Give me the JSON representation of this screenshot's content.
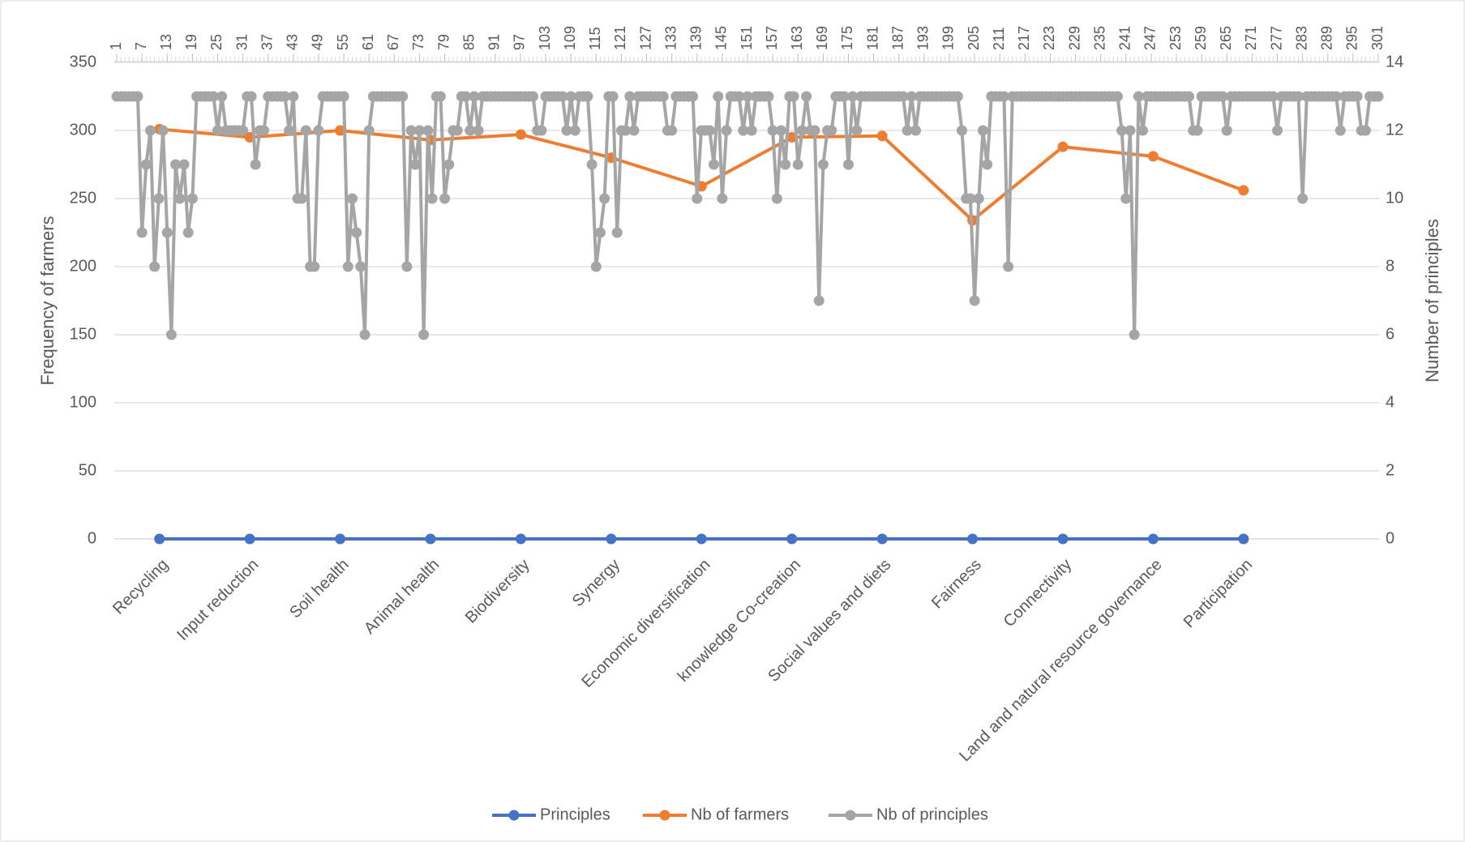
{
  "chart_data": {
    "type": "line",
    "categories": [
      "Recycling",
      "Input reduction",
      "Soil health",
      "Animal health",
      "Biodiversity",
      "Synergy",
      "Economic diversification",
      "knowledge Co-creation",
      "Social values and diets",
      "Fairness",
      "Connectivity",
      "Land and natural resource governance",
      "Participation"
    ],
    "ylabel": "Frequency of farmers",
    "y2label": "Number of principles",
    "ylim": [
      0,
      350
    ],
    "yticks": [
      0,
      50,
      100,
      150,
      200,
      250,
      300,
      350
    ],
    "y2lim": [
      0,
      14
    ],
    "y2ticks": [
      0,
      2,
      4,
      6,
      8,
      10,
      12,
      14
    ],
    "x2lim": [
      1,
      301
    ],
    "x2ticks": [
      1,
      7,
      13,
      19,
      25,
      31,
      37,
      43,
      49,
      55,
      61,
      67,
      73,
      79,
      85,
      91,
      97,
      103,
      109,
      115,
      121,
      127,
      133,
      139,
      145,
      151,
      157,
      163,
      169,
      175,
      181,
      187,
      193,
      199,
      205,
      211,
      217,
      223,
      229,
      235,
      241,
      247,
      253,
      259,
      265,
      271,
      277,
      283,
      289,
      295,
      301
    ],
    "grid": true,
    "legend": "bottom",
    "series": [
      {
        "name": "Principles",
        "color": "#4472c4",
        "values": [
          0,
          0,
          0,
          0,
          0,
          0,
          0,
          0,
          0,
          0,
          0,
          0,
          0
        ]
      },
      {
        "name": "Nb of farmers",
        "color": "#ed7d31",
        "values": [
          301,
          295,
          300,
          293,
          297,
          280,
          259,
          295,
          296,
          234,
          288,
          281,
          256
        ]
      },
      {
        "name": "Nb of principles",
        "color": "#a5a5a5",
        "axis": "y2",
        "x": [
          1,
          2,
          3,
          4,
          5,
          6,
          7,
          8,
          9,
          10,
          11,
          12,
          13,
          14,
          15,
          16,
          17,
          18,
          19,
          20,
          21,
          22,
          23,
          24,
          25,
          26,
          27,
          28,
          29,
          30,
          31,
          32,
          33,
          34,
          35,
          36,
          37,
          38,
          39,
          40,
          41,
          42,
          43,
          44,
          45,
          46,
          47,
          48,
          49,
          50,
          51,
          52,
          53,
          54,
          55,
          56,
          57,
          58,
          59,
          60,
          61,
          62,
          63,
          64,
          65,
          66,
          67,
          68,
          69,
          70,
          71,
          72,
          73,
          74,
          75,
          76,
          77,
          78,
          79,
          80,
          81,
          82,
          83,
          84,
          85,
          86,
          87,
          88,
          89,
          90,
          91,
          92,
          93,
          94,
          95,
          96,
          97,
          98,
          99,
          100,
          101,
          102,
          103,
          104,
          105,
          106,
          107,
          108,
          109,
          110,
          111,
          112,
          113,
          114,
          115,
          116,
          117,
          118,
          119,
          120,
          121,
          122,
          123,
          124,
          125,
          126,
          127,
          128,
          129,
          130,
          131,
          132,
          133,
          134,
          135,
          136,
          137,
          138,
          139,
          140,
          141,
          142,
          143,
          144,
          145,
          146,
          147,
          148,
          149,
          150,
          151,
          152,
          153,
          154,
          155,
          156,
          157,
          158,
          159,
          160,
          161,
          162,
          163,
          164,
          165,
          166,
          167,
          168,
          169,
          170,
          171,
          172,
          173,
          174,
          175,
          176,
          177,
          178,
          179,
          180,
          181,
          182,
          183,
          184,
          185,
          186,
          187,
          188,
          189,
          190,
          191,
          192,
          193,
          194,
          195,
          196,
          197,
          198,
          199,
          200,
          201,
          202,
          203,
          204,
          205,
          206,
          207,
          208,
          209,
          210,
          211,
          212,
          213,
          214,
          215,
          216,
          217,
          218,
          219,
          220,
          221,
          222,
          223,
          224,
          225,
          226,
          227,
          228,
          229,
          230,
          231,
          232,
          233,
          234,
          235,
          236,
          237,
          238,
          239,
          240,
          241,
          242,
          243,
          244,
          245,
          246,
          247,
          248,
          249,
          250,
          251,
          252,
          253,
          254,
          255,
          256,
          257,
          258,
          259,
          260,
          261,
          262,
          263,
          264,
          265,
          266,
          267,
          268,
          269,
          270,
          271,
          272,
          273,
          274,
          275,
          276,
          277,
          278,
          279,
          280,
          281,
          282,
          283,
          284,
          285,
          286,
          287,
          288,
          289,
          290,
          291,
          292,
          293,
          294,
          295,
          296,
          297,
          298,
          299,
          300,
          301
        ],
        "values": [
          13,
          13,
          13,
          13,
          13,
          13,
          9,
          11,
          12,
          8,
          10,
          12,
          9,
          6,
          11,
          10,
          11,
          9,
          10,
          13,
          13,
          13,
          13,
          13,
          12,
          13,
          12,
          12,
          12,
          12,
          12,
          13,
          13,
          11,
          12,
          12,
          13,
          13,
          13,
          13,
          13,
          12,
          13,
          10,
          10,
          12,
          8,
          8,
          12,
          13,
          13,
          13,
          13,
          13,
          13,
          8,
          10,
          9,
          8,
          6,
          12,
          13,
          13,
          13,
          13,
          13,
          13,
          13,
          13,
          8,
          12,
          11,
          12,
          6,
          12,
          10,
          13,
          13,
          10,
          11,
          12,
          12,
          13,
          13,
          12,
          13,
          12,
          13,
          13,
          13,
          13,
          13,
          13,
          13,
          13,
          13,
          13,
          13,
          13,
          13,
          12,
          12,
          13,
          13,
          13,
          13,
          13,
          12,
          13,
          12,
          13,
          13,
          13,
          11,
          8,
          9,
          10,
          13,
          13,
          9,
          12,
          12,
          13,
          12,
          13,
          13,
          13,
          13,
          13,
          13,
          13,
          12,
          12,
          13,
          13,
          13,
          13,
          13,
          10,
          12,
          12,
          12,
          11,
          13,
          10,
          12,
          13,
          13,
          13,
          12,
          13,
          12,
          13,
          13,
          13,
          13,
          12,
          10,
          12,
          11,
          13,
          13,
          11,
          12,
          13,
          12,
          12,
          7,
          11,
          12,
          12,
          13,
          13,
          13,
          11,
          13,
          12,
          13,
          13,
          13,
          13,
          13,
          13,
          13,
          13,
          13,
          13,
          13,
          12,
          13,
          12,
          13,
          13,
          13,
          13,
          13,
          13,
          13,
          13,
          13,
          13,
          12,
          10,
          10,
          7,
          10,
          12,
          11,
          13,
          13,
          13,
          13,
          8,
          13,
          13,
          13,
          13,
          13,
          13,
          13,
          13,
          13,
          13,
          13,
          13,
          13,
          13,
          13,
          13,
          13,
          13,
          13,
          13,
          13,
          13,
          13,
          13,
          13,
          13,
          12,
          10,
          12,
          6,
          13,
          12,
          13,
          13,
          13,
          13,
          13,
          13,
          13,
          13,
          13,
          13,
          13,
          12,
          12,
          13,
          13,
          13,
          13,
          13,
          13,
          12,
          13,
          13,
          13,
          13,
          13,
          13,
          13,
          13,
          13,
          13,
          13,
          12,
          13,
          13,
          13,
          13,
          13,
          10,
          13,
          13,
          13,
          13,
          13,
          13,
          13,
          13,
          12,
          13,
          13,
          13,
          13,
          12,
          12,
          13,
          13,
          13
        ]
      }
    ]
  }
}
